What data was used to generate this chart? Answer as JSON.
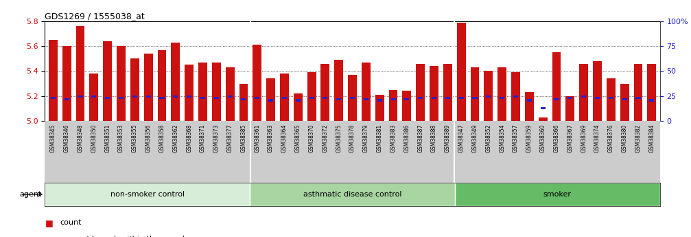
{
  "title": "GDS1269 / 1555038_at",
  "ylim": [
    5.0,
    5.8
  ],
  "yticks": [
    5.0,
    5.2,
    5.4,
    5.6,
    5.8
  ],
  "right_yticks": [
    0,
    25,
    50,
    75,
    100
  ],
  "right_ylabels": [
    "0",
    "25",
    "50",
    "75",
    "100%"
  ],
  "groups": [
    {
      "name": "non-smoker control",
      "color": "#d8edd8",
      "start": 0,
      "end": 15
    },
    {
      "name": "asthmatic disease control",
      "color": "#a8d5a2",
      "start": 15,
      "end": 30
    },
    {
      "name": "smoker",
      "color": "#66bb66",
      "start": 30,
      "end": 45
    }
  ],
  "samples": [
    "GSM38345",
    "GSM38346",
    "GSM38348",
    "GSM38350",
    "GSM38351",
    "GSM38353",
    "GSM38355",
    "GSM38356",
    "GSM38358",
    "GSM38362",
    "GSM38368",
    "GSM38371",
    "GSM38373",
    "GSM38377",
    "GSM38385",
    "GSM38361",
    "GSM38363",
    "GSM38364",
    "GSM38365",
    "GSM38370",
    "GSM38372",
    "GSM38375",
    "GSM38378",
    "GSM38379",
    "GSM38381",
    "GSM38383",
    "GSM38386",
    "GSM38387",
    "GSM38388",
    "GSM38389",
    "GSM38347",
    "GSM38349",
    "GSM38352",
    "GSM38354",
    "GSM38357",
    "GSM38359",
    "GSM38360",
    "GSM38366",
    "GSM38367",
    "GSM38369",
    "GSM38374",
    "GSM38376",
    "GSM38380",
    "GSM38382",
    "GSM38384"
  ],
  "bar_heights": [
    5.65,
    5.6,
    5.76,
    5.38,
    5.64,
    5.6,
    5.5,
    5.54,
    5.57,
    5.63,
    5.45,
    5.47,
    5.47,
    5.43,
    5.3,
    5.61,
    5.34,
    5.38,
    5.22,
    5.39,
    5.46,
    5.49,
    5.37,
    5.47,
    5.21,
    5.25,
    5.24,
    5.46,
    5.44,
    5.46,
    5.79,
    5.43,
    5.4,
    5.43,
    5.39,
    5.23,
    5.03,
    5.55,
    5.2,
    5.46,
    5.48,
    5.34,
    5.3,
    5.46,
    5.46
  ],
  "percentile_values": [
    5.185,
    5.175,
    5.195,
    5.195,
    5.185,
    5.185,
    5.195,
    5.195,
    5.185,
    5.195,
    5.195,
    5.185,
    5.185,
    5.195,
    5.175,
    5.185,
    5.165,
    5.185,
    5.165,
    5.185,
    5.185,
    5.175,
    5.185,
    5.175,
    5.165,
    5.175,
    5.175,
    5.185,
    5.185,
    5.185,
    5.185,
    5.185,
    5.195,
    5.185,
    5.195,
    5.165,
    5.1,
    5.175,
    5.185,
    5.195,
    5.185,
    5.185,
    5.175,
    5.185,
    5.165
  ],
  "bar_color": "#cc1111",
  "pct_color": "#2222cc",
  "bar_width": 0.65,
  "right_axis_color": "#2222cc",
  "tick_label_color": "#cc1111",
  "background_plot": "#ffffff",
  "xtick_bg": "#cccccc"
}
